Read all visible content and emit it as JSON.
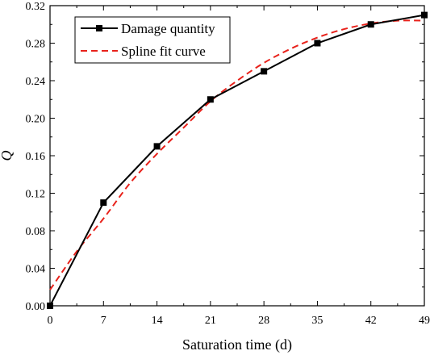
{
  "chart_data": {
    "type": "line",
    "xlabel": "Saturation time (d)",
    "ylabel": "Q",
    "xlim": [
      0,
      49
    ],
    "ylim": [
      0,
      0.32
    ],
    "x_ticks": [
      "0",
      "7",
      "14",
      "21",
      "28",
      "35",
      "42",
      "49"
    ],
    "y_ticks": [
      "0.00",
      "0.04",
      "0.08",
      "0.12",
      "0.16",
      "0.20",
      "0.24",
      "0.28",
      "0.32"
    ],
    "grid": false,
    "legend_position": "top-left",
    "series": [
      {
        "name": "Damage quantity",
        "style": "solid-line-square-markers",
        "color": "#000000",
        "x": [
          0,
          7,
          14,
          21,
          28,
          35,
          42,
          49
        ],
        "values": [
          0.0,
          0.11,
          0.17,
          0.22,
          0.25,
          0.28,
          0.3,
          0.31
        ]
      },
      {
        "name": "Spline fit curve",
        "style": "dashed-line",
        "color": "#e8221b",
        "x": [
          0,
          3.5,
          7,
          10.5,
          14,
          17.5,
          21,
          24.5,
          28,
          31.5,
          35,
          38.5,
          42,
          45.5,
          49
        ],
        "values": [
          0.017,
          0.058,
          0.093,
          0.131,
          0.162,
          0.19,
          0.218,
          0.24,
          0.259,
          0.274,
          0.286,
          0.295,
          0.301,
          0.304,
          0.304
        ]
      }
    ]
  }
}
